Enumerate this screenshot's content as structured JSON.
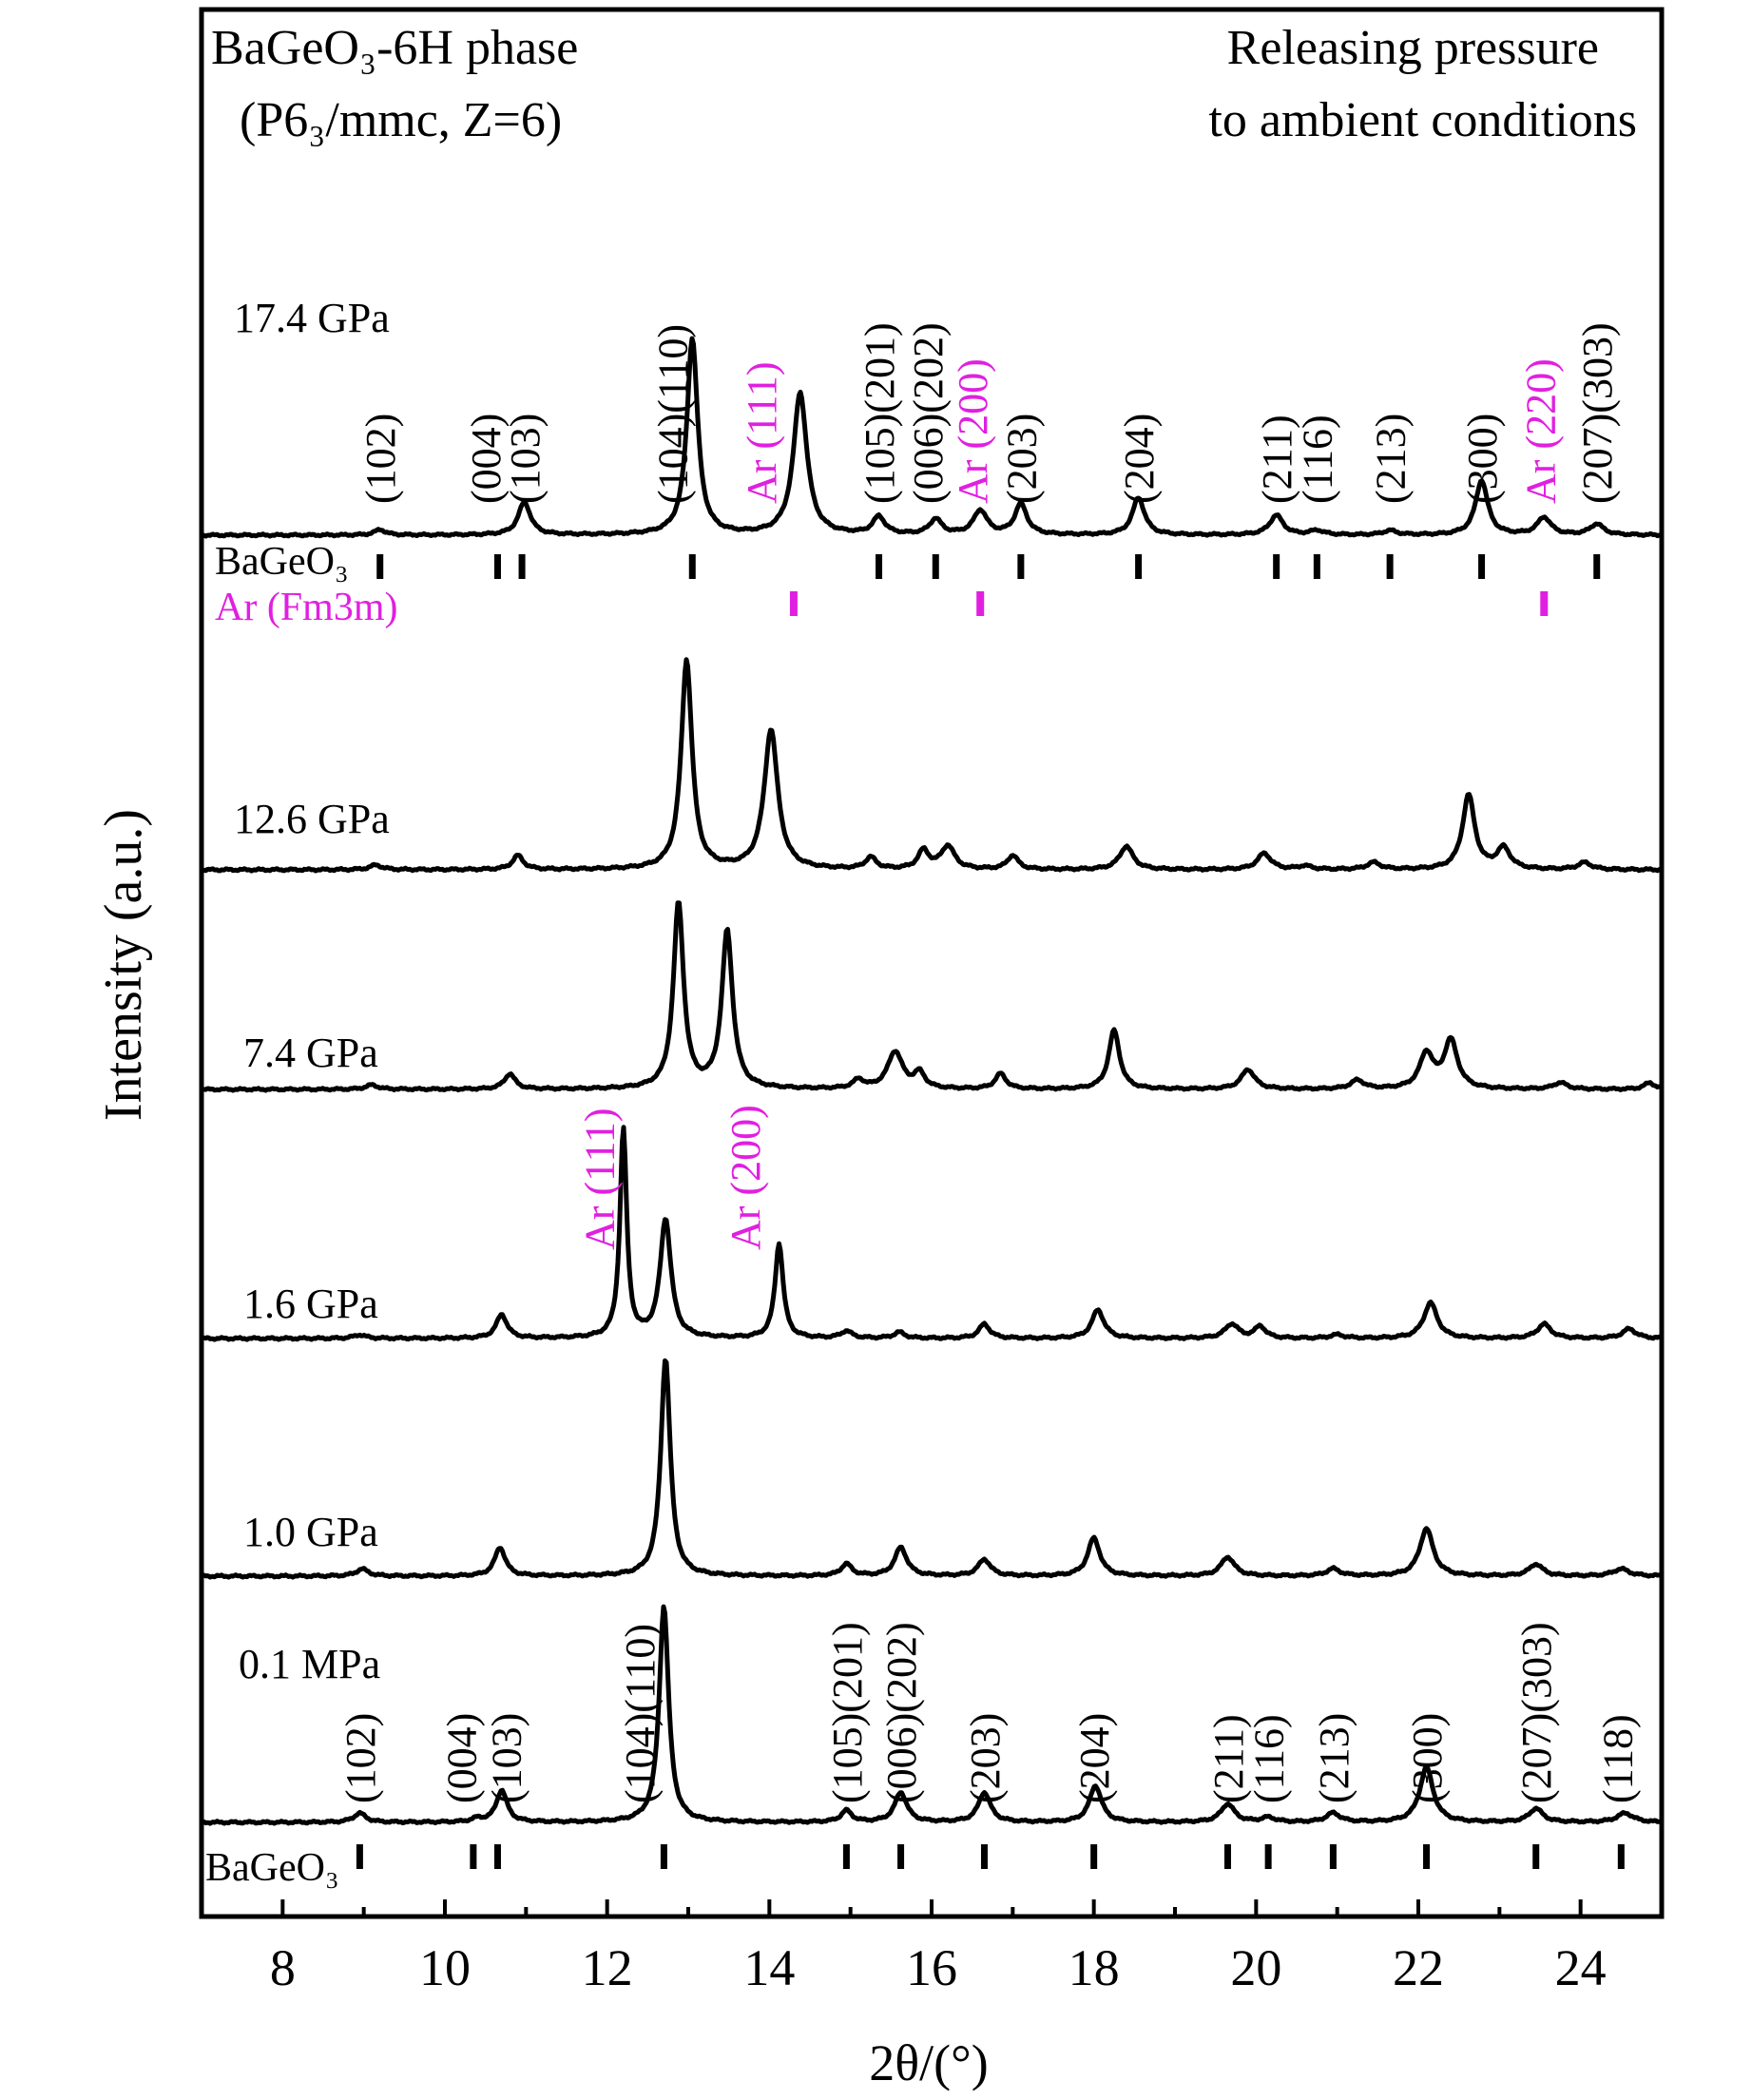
{
  "chart_data": {
    "type": "line",
    "title_lines": [
      "BaGeO₃-6H phase",
      "(P6₃/mmc, Z=6)"
    ],
    "note_lines": [
      "Releasing pressure",
      "to ambient conditions"
    ],
    "xlabel": "2θ/(°)",
    "ylabel": "Intensity (a.u.)",
    "xlim": [
      7,
      25
    ],
    "xticks": [
      8,
      10,
      12,
      14,
      16,
      18,
      20,
      22,
      24
    ],
    "colors": {
      "curve": "#000000",
      "argon": "#e020e0"
    },
    "series": [
      {
        "name": "17.4 GPa",
        "peaks": [
          [
            9.2,
            0.025,
            0.08
          ],
          [
            10.98,
            0.15,
            0.09
          ],
          [
            13.05,
            0.9,
            0.08
          ],
          [
            14.38,
            0.65,
            0.1
          ],
          [
            15.35,
            0.08,
            0.09
          ],
          [
            16.05,
            0.07,
            0.09
          ],
          [
            16.6,
            0.11,
            0.1
          ],
          [
            17.1,
            0.14,
            0.09
          ],
          [
            18.55,
            0.17,
            0.09
          ],
          [
            20.25,
            0.09,
            0.1
          ],
          [
            20.75,
            0.02,
            0.1
          ],
          [
            21.65,
            0.02,
            0.1
          ],
          [
            22.78,
            0.25,
            0.09
          ],
          [
            23.55,
            0.08,
            0.1
          ],
          [
            24.2,
            0.05,
            0.1
          ]
        ]
      },
      {
        "name": "12.6 GPa",
        "peaks": [
          [
            9.15,
            0.02,
            0.09
          ],
          [
            10.9,
            0.06,
            0.08
          ],
          [
            12.98,
            0.9,
            0.08
          ],
          [
            14.02,
            0.6,
            0.1
          ],
          [
            15.25,
            0.05,
            0.08
          ],
          [
            15.9,
            0.08,
            0.08
          ],
          [
            16.2,
            0.1,
            0.1
          ],
          [
            17.0,
            0.06,
            0.08
          ],
          [
            18.4,
            0.1,
            0.1
          ],
          [
            20.1,
            0.07,
            0.1
          ],
          [
            20.6,
            0.015,
            0.1
          ],
          [
            21.45,
            0.03,
            0.1
          ],
          [
            22.62,
            0.32,
            0.09
          ],
          [
            23.05,
            0.09,
            0.1
          ],
          [
            24.05,
            0.03,
            0.1
          ]
        ]
      },
      {
        "name": "7.4 GPa",
        "peaks": [
          [
            9.1,
            0.02,
            0.09
          ],
          [
            10.8,
            0.07,
            0.08
          ],
          [
            12.88,
            0.85,
            0.075
          ],
          [
            13.48,
            0.72,
            0.08
          ],
          [
            15.1,
            0.04,
            0.08
          ],
          [
            15.55,
            0.17,
            0.11
          ],
          [
            15.85,
            0.07,
            0.08
          ],
          [
            16.85,
            0.07,
            0.08
          ],
          [
            18.25,
            0.27,
            0.08
          ],
          [
            19.9,
            0.09,
            0.1
          ],
          [
            21.25,
            0.04,
            0.1
          ],
          [
            22.1,
            0.16,
            0.1
          ],
          [
            22.4,
            0.22,
            0.1
          ],
          [
            23.75,
            0.03,
            0.1
          ],
          [
            24.85,
            0.03,
            0.08
          ]
        ]
      },
      {
        "name": "1.6 GPa",
        "peaks": [
          [
            8.95,
            0.015,
            0.09
          ],
          [
            10.7,
            0.1,
            0.08
          ],
          [
            12.2,
            0.88,
            0.05
          ],
          [
            12.72,
            0.5,
            0.08
          ],
          [
            14.12,
            0.4,
            0.06
          ],
          [
            14.95,
            0.03,
            0.08
          ],
          [
            15.6,
            0.025,
            0.08
          ],
          [
            16.65,
            0.06,
            0.08
          ],
          [
            18.05,
            0.12,
            0.09
          ],
          [
            19.7,
            0.06,
            0.1
          ],
          [
            20.05,
            0.05,
            0.08
          ],
          [
            21.0,
            0.015,
            0.1
          ],
          [
            22.15,
            0.15,
            0.1
          ],
          [
            23.55,
            0.06,
            0.1
          ],
          [
            24.6,
            0.04,
            0.1
          ]
        ]
      },
      {
        "name": "1.0 GPa",
        "peaks": [
          [
            8.98,
            0.03,
            0.09
          ],
          [
            10.68,
            0.12,
            0.08
          ],
          [
            12.72,
            0.92,
            0.07
          ],
          [
            14.95,
            0.05,
            0.08
          ],
          [
            15.62,
            0.12,
            0.09
          ],
          [
            16.65,
            0.07,
            0.09
          ],
          [
            18.0,
            0.16,
            0.09
          ],
          [
            19.65,
            0.08,
            0.1
          ],
          [
            20.95,
            0.03,
            0.1
          ],
          [
            22.1,
            0.2,
            0.1
          ],
          [
            23.45,
            0.05,
            0.1
          ],
          [
            24.5,
            0.03,
            0.12
          ]
        ]
      },
      {
        "name": "0.1 MPa",
        "peaks": [
          [
            8.95,
            0.04,
            0.09
          ],
          [
            10.4,
            0.015,
            0.08
          ],
          [
            10.7,
            0.14,
            0.08
          ],
          [
            12.7,
            0.95,
            0.07
          ],
          [
            14.95,
            0.05,
            0.08
          ],
          [
            15.62,
            0.13,
            0.09
          ],
          [
            16.65,
            0.13,
            0.09
          ],
          [
            18.02,
            0.16,
            0.09
          ],
          [
            19.65,
            0.08,
            0.1
          ],
          [
            20.15,
            0.02,
            0.1
          ],
          [
            20.95,
            0.04,
            0.1
          ],
          [
            22.1,
            0.24,
            0.1
          ],
          [
            23.45,
            0.06,
            0.1
          ],
          [
            24.55,
            0.04,
            0.12
          ]
        ]
      }
    ],
    "reference_ticks": {
      "upper_label": "BaGeO₃",
      "upper_bageo3": [
        9.2,
        10.65,
        10.95,
        13.05,
        15.35,
        16.05,
        17.1,
        18.55,
        20.25,
        20.75,
        21.65,
        22.78,
        24.2
      ],
      "argon_label": "Ar (Fm3m)",
      "argon": [
        14.3,
        16.6,
        23.55
      ],
      "lower_label": "BaGeO₃",
      "lower_bageo3": [
        8.95,
        10.35,
        10.65,
        12.7,
        14.95,
        15.62,
        16.65,
        18.0,
        19.65,
        20.15,
        20.95,
        22.1,
        23.45,
        24.5
      ]
    },
    "annotations": {
      "top_pattern": [
        {
          "text": "(102)",
          "x": 9.2,
          "argon": false
        },
        {
          "text": "(004)",
          "x": 10.5,
          "argon": false
        },
        {
          "text": "(103)",
          "x": 10.98,
          "argon": false
        },
        {
          "text": "(104)(110)",
          "x": 12.8,
          "argon": false
        },
        {
          "text": "Ar (111)",
          "x": 13.9,
          "argon": true
        },
        {
          "text": "(105)(201)",
          "x": 15.35,
          "argon": false
        },
        {
          "text": "(006)(202)",
          "x": 15.95,
          "argon": false
        },
        {
          "text": "Ar (200)",
          "x": 16.5,
          "argon": true
        },
        {
          "text": "(203)",
          "x": 17.1,
          "argon": false
        },
        {
          "text": "(204)",
          "x": 18.55,
          "argon": false
        },
        {
          "text": "(211)",
          "x": 20.25,
          "argon": false
        },
        {
          "text": "(116)",
          "x": 20.75,
          "argon": false
        },
        {
          "text": "(213)",
          "x": 21.65,
          "argon": false
        },
        {
          "text": "(300)",
          "x": 22.78,
          "argon": false
        },
        {
          "text": "Ar (220)",
          "x": 23.5,
          "argon": true
        },
        {
          "text": "(207)(303)",
          "x": 24.2,
          "argon": false
        }
      ],
      "pattern_1_6": [
        {
          "text": "Ar (111)",
          "x": 11.9,
          "argon": true
        },
        {
          "text": "Ar (200)",
          "x": 13.7,
          "argon": true
        }
      ],
      "bottom_pattern": [
        {
          "text": "(102)",
          "x": 8.95,
          "argon": false
        },
        {
          "text": "(004)",
          "x": 10.2,
          "argon": false
        },
        {
          "text": "(103)",
          "x": 10.75,
          "argon": false
        },
        {
          "text": "(104)(110)",
          "x": 12.4,
          "argon": false
        },
        {
          "text": "(105)(201)",
          "x": 14.95,
          "argon": false
        },
        {
          "text": "(006)(202)",
          "x": 15.62,
          "argon": false
        },
        {
          "text": "(203)",
          "x": 16.65,
          "argon": false
        },
        {
          "text": "(204)",
          "x": 18.0,
          "argon": false
        },
        {
          "text": "(211)",
          "x": 19.65,
          "argon": false
        },
        {
          "text": "(116)",
          "x": 20.15,
          "argon": false
        },
        {
          "text": "(213)",
          "x": 20.95,
          "argon": false
        },
        {
          "text": "(300)",
          "x": 22.1,
          "argon": false
        },
        {
          "text": "(207)(303)",
          "x": 23.45,
          "argon": false
        },
        {
          "text": "(118)",
          "x": 24.45,
          "argon": false
        }
      ]
    }
  }
}
